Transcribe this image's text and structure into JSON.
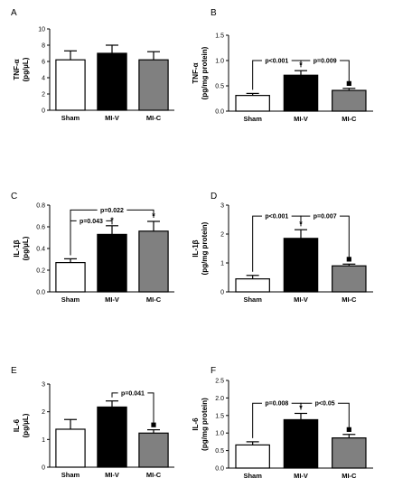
{
  "chart_data": [
    {
      "type": "bar",
      "panel": "A",
      "ylabel": [
        "TNF-α",
        "(pg/µL)"
      ],
      "ylim": [
        0,
        10
      ],
      "yticks": [
        0,
        2,
        4,
        6,
        8,
        10
      ],
      "categories": [
        "Sham",
        "MI-V",
        "MI-C"
      ],
      "values": [
        6.2,
        7.0,
        6.2
      ],
      "errors": [
        1.1,
        1.0,
        1.0
      ],
      "colors": [
        "#ffffff",
        "#000000",
        "#808080"
      ],
      "brackets": [],
      "stars": [],
      "squares": []
    },
    {
      "type": "bar",
      "panel": "B",
      "ylabel": [
        "TNF-α",
        "(pg/mg protein)"
      ],
      "ylim": [
        0,
        1.5
      ],
      "yticks": [
        0.0,
        0.5,
        1.0,
        1.5
      ],
      "tick_decimals": 1,
      "categories": [
        "Sham",
        "MI-V",
        "MI-C"
      ],
      "values": [
        0.31,
        0.71,
        0.41
      ],
      "errors": [
        0.04,
        0.09,
        0.04
      ],
      "colors": [
        "#ffffff",
        "#000000",
        "#808080"
      ],
      "brackets": [
        {
          "from": 0,
          "to": 1,
          "at": 1.0,
          "label": "p<0.001"
        },
        {
          "from": 1,
          "to": 2,
          "at": 1.0,
          "label": "p=0.009"
        }
      ],
      "stars": [
        1
      ],
      "squares": [
        2
      ]
    },
    {
      "type": "bar",
      "panel": "C",
      "ylabel": [
        "IL-1β",
        "(pg/µL)"
      ],
      "ylim": [
        0,
        0.8
      ],
      "yticks": [
        0.0,
        0.2,
        0.4,
        0.6,
        0.8
      ],
      "tick_decimals": 1,
      "categories": [
        "Sham",
        "MI-V",
        "MI-C"
      ],
      "values": [
        0.27,
        0.53,
        0.56
      ],
      "errors": [
        0.035,
        0.08,
        0.09
      ],
      "colors": [
        "#ffffff",
        "#000000",
        "#808080"
      ],
      "brackets": [
        {
          "from": 0,
          "to": 1,
          "at": 0.655,
          "label": "p=0.043"
        },
        {
          "from": 0,
          "to": 2,
          "at": 0.755,
          "label": "p=0.022"
        }
      ],
      "stars": [
        1,
        2
      ],
      "squares": []
    },
    {
      "type": "bar",
      "panel": "D",
      "ylabel": [
        "IL-1β",
        "(pg/mg protein)"
      ],
      "ylim": [
        0,
        3
      ],
      "yticks": [
        0,
        1,
        2,
        3
      ],
      "categories": [
        "Sham",
        "MI-V",
        "MI-C"
      ],
      "values": [
        0.45,
        1.85,
        0.9
      ],
      "errors": [
        0.12,
        0.3,
        0.06
      ],
      "colors": [
        "#ffffff",
        "#000000",
        "#808080"
      ],
      "brackets": [
        {
          "from": 0,
          "to": 1,
          "at": 2.62,
          "label": "p<0.001"
        },
        {
          "from": 1,
          "to": 2,
          "at": 2.62,
          "label": "p=0.007"
        }
      ],
      "stars": [
        1
      ],
      "squares": [
        2
      ]
    },
    {
      "type": "bar",
      "panel": "E",
      "ylabel": [
        "IL-6",
        "(pg/µL)"
      ],
      "ylim": [
        0,
        3
      ],
      "yticks": [
        0,
        1,
        2,
        3
      ],
      "categories": [
        "Sham",
        "MI-V",
        "MI-C"
      ],
      "values": [
        1.37,
        2.17,
        1.23
      ],
      "errors": [
        0.35,
        0.22,
        0.12
      ],
      "colors": [
        "#ffffff",
        "#000000",
        "#808080"
      ],
      "brackets": [
        {
          "from": 1,
          "to": 2,
          "at": 2.68,
          "label": "p=0.041"
        }
      ],
      "stars": [],
      "squares": [
        2
      ]
    },
    {
      "type": "bar",
      "panel": "F",
      "ylabel": [
        "IL-6",
        "(pg/mg protein)"
      ],
      "ylim": [
        0,
        2.5
      ],
      "yticks": [
        0.0,
        0.5,
        1.0,
        1.5,
        2.0,
        2.5
      ],
      "tick_decimals": 1,
      "categories": [
        "Sham",
        "MI-V",
        "MI-C"
      ],
      "values": [
        0.66,
        1.38,
        0.86
      ],
      "errors": [
        0.09,
        0.18,
        0.1
      ],
      "colors": [
        "#ffffff",
        "#000000",
        "#808080"
      ],
      "brackets": [
        {
          "from": 0,
          "to": 1,
          "at": 1.85,
          "label": "p=0.008"
        },
        {
          "from": 1,
          "to": 2,
          "at": 1.85,
          "label": "p<0.05"
        }
      ],
      "stars": [
        1
      ],
      "squares": [
        2
      ]
    }
  ]
}
